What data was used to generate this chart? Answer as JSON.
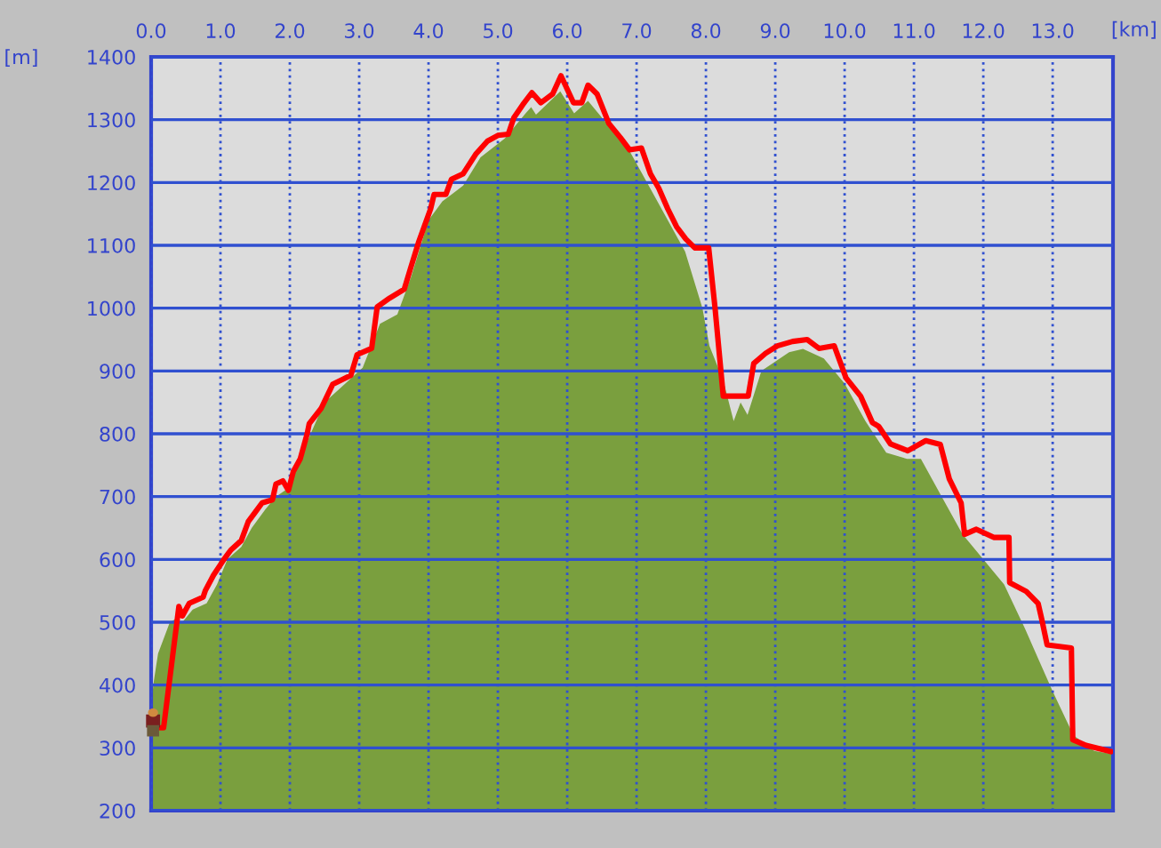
{
  "chart_data": {
    "type": "area",
    "xlabel": "[km]",
    "ylabel": "[m]",
    "xlim": [
      0,
      13.87
    ],
    "xticks": [
      {
        "value": 0,
        "label": "0.0"
      },
      {
        "value": 1,
        "label": "1.0"
      },
      {
        "value": 2,
        "label": "2.0"
      },
      {
        "value": 3,
        "label": "3.0"
      },
      {
        "value": 4,
        "label": "4.0"
      },
      {
        "value": 5,
        "label": "5.0"
      },
      {
        "value": 6,
        "label": "6.0"
      },
      {
        "value": 7,
        "label": "7.0"
      },
      {
        "value": 8,
        "label": "8.0"
      },
      {
        "value": 9,
        "label": "9.0"
      },
      {
        "value": 10,
        "label": "10.0"
      },
      {
        "value": 11,
        "label": "11.0"
      },
      {
        "value": 12,
        "label": "12.0"
      },
      {
        "value": 13,
        "label": "13.0"
      }
    ],
    "ylim": [
      200,
      1400
    ],
    "yticks": [
      200,
      300,
      400,
      500,
      600,
      700,
      800,
      900,
      1000,
      1100,
      1200,
      1300,
      1400
    ],
    "grid": true,
    "legend": false,
    "series": [
      {
        "color": "#7a9f3e",
        "x": [
          0,
          0.03,
          0.1,
          0.27,
          0.35,
          0.45,
          0.6,
          0.8,
          0.95,
          1.1,
          1.3,
          1.45,
          1.65,
          1.8,
          2.0,
          2.15,
          2.3,
          2.5,
          2.8,
          3.05,
          3.3,
          3.55,
          3.75,
          4.0,
          4.2,
          4.5,
          4.75,
          5.1,
          5.4,
          5.48,
          5.55,
          5.9,
          6.1,
          6.3,
          6.6,
          6.9,
          7.15,
          7.5,
          7.7,
          7.95,
          8.05,
          8.25,
          8.4,
          8.5,
          8.6,
          8.8,
          9.2,
          9.4,
          9.7,
          10.0,
          10.3,
          10.6,
          10.9,
          11.1,
          11.4,
          11.7,
          12.0,
          12.3,
          12.6,
          12.8,
          13.0,
          13.3,
          13.6,
          13.87
        ],
        "values": [
          350,
          400,
          450,
          500,
          505,
          500,
          520,
          530,
          560,
          600,
          620,
          650,
          680,
          700,
          715,
          760,
          800,
          850,
          880,
          905,
          975,
          990,
          1050,
          1140,
          1170,
          1195,
          1240,
          1270,
          1310,
          1320,
          1308,
          1345,
          1310,
          1330,
          1290,
          1250,
          1200,
          1130,
          1090,
          1000,
          940,
          885,
          820,
          850,
          830,
          900,
          930,
          935,
          920,
          880,
          820,
          770,
          760,
          760,
          700,
          640,
          600,
          560,
          490,
          440,
          390,
          320,
          295,
          290
        ]
      },
      {
        "type": "line",
        "color": "#ff0000",
        "x": [
          0,
          0.18,
          0.4,
          0.45,
          0.55,
          0.75,
          0.78,
          0.9,
          1.05,
          1.15,
          1.3,
          1.4,
          1.5,
          1.6,
          1.75,
          1.8,
          1.9,
          1.98,
          2.05,
          2.15,
          2.2,
          2.25,
          2.28,
          2.45,
          2.62,
          2.88,
          2.97,
          3.18,
          3.26,
          3.44,
          3.65,
          3.74,
          3.86,
          4.03,
          4.08,
          4.25,
          4.33,
          4.5,
          4.68,
          4.85,
          5.0,
          5.15,
          5.23,
          5.36,
          5.49,
          5.62,
          5.79,
          5.91,
          6.09,
          6.21,
          6.3,
          6.43,
          6.6,
          6.77,
          6.9,
          7.07,
          7.2,
          7.32,
          7.45,
          7.58,
          7.71,
          7.84,
          8.04,
          8.13,
          8.25,
          8.61,
          8.69,
          8.86,
          9.03,
          9.25,
          9.46,
          9.63,
          9.85,
          10.02,
          10.23,
          10.4,
          10.49,
          10.66,
          10.91,
          11.17,
          11.38,
          11.51,
          11.68,
          11.73,
          11.9,
          12.15,
          12.37,
          12.38,
          12.62,
          12.79,
          12.84,
          12.92,
          13.27,
          13.29,
          13.48,
          13.84
        ],
        "values": [
          332,
          332,
          525,
          510,
          530,
          540,
          550,
          575,
          600,
          615,
          630,
          660,
          675,
          690,
          695,
          720,
          725,
          710,
          740,
          760,
          780,
          800,
          816,
          840,
          879,
          893,
          926,
          936,
          1002,
          1016,
          1030,
          1063,
          1106,
          1158,
          1181,
          1181,
          1205,
          1214,
          1245,
          1266,
          1275,
          1277,
          1303,
          1324,
          1343,
          1327,
          1341,
          1370,
          1327,
          1327,
          1355,
          1341,
          1294,
          1271,
          1252,
          1255,
          1214,
          1191,
          1158,
          1129,
          1110,
          1096,
          1096,
          1002,
          860,
          860,
          912,
          928,
          940,
          947,
          950,
          936,
          940,
          889,
          860,
          818,
          812,
          784,
          773,
          789,
          783,
          728,
          690,
          640,
          648,
          635,
          635,
          563,
          549,
          530,
          506,
          464,
          459,
          313,
          304,
          294
        ]
      }
    ]
  }
}
